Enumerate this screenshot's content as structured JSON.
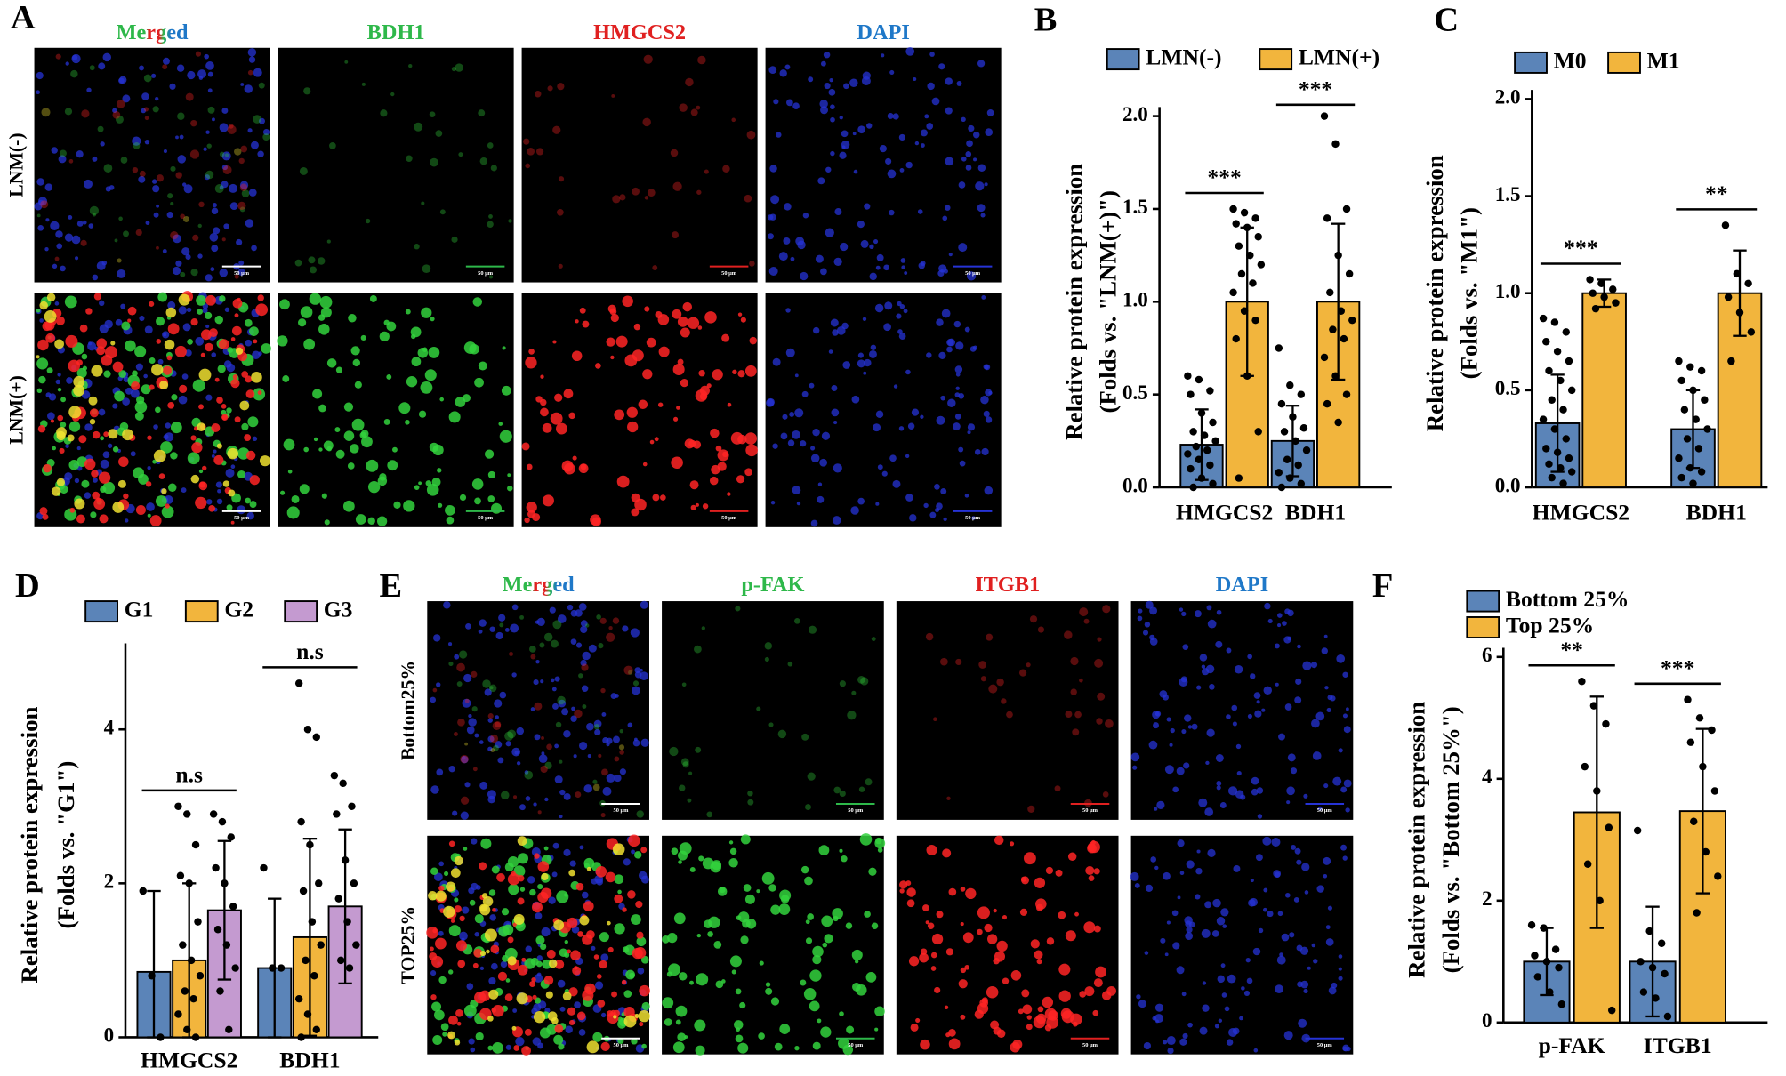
{
  "image_panels": [
    {
      "panel": "A",
      "columns": [
        "Merged",
        "BDH1",
        "HMGCS2",
        "DAPI"
      ],
      "rows": [
        "LNM(-)",
        "LNM(+)"
      ],
      "scale_bar": "50 μm"
    },
    {
      "panel": "E",
      "columns": [
        "Merged",
        "p-FAK",
        "ITGB1",
        "DAPI"
      ],
      "rows": [
        "Bottom25%",
        "TOP25%"
      ],
      "scale_bar": "50 μm"
    }
  ],
  "chart_data": [
    {
      "type": "bar",
      "panel": "B",
      "ylabel": [
        "Relative protein expression",
        "(Folds vs. \"LNM(+)\")"
      ],
      "categories": [
        "HMGCS2",
        "BDH1"
      ],
      "series": [
        {
          "name": "LMN(-)",
          "color": "#5b84b8",
          "values": [
            0.23,
            0.25
          ],
          "errors": [
            0.19,
            0.19
          ],
          "points": [
            [
              0.6,
              0.58,
              0.52,
              0.5,
              0.4,
              0.35,
              0.3,
              0.28,
              0.25,
              0.22,
              0.2,
              0.18,
              0.15,
              0.12,
              0.1,
              0.05,
              0.02,
              0
            ],
            [
              0.75,
              0.55,
              0.5,
              0.45,
              0.38,
              0.32,
              0.3,
              0.25,
              0.2,
              0.15,
              0.12,
              0.08,
              0.05,
              0.02,
              0
            ]
          ]
        },
        {
          "name": "LMN(+)",
          "color": "#f2b53d",
          "values": [
            1.0,
            1.0
          ],
          "errors": [
            0.4,
            0.42
          ],
          "points": [
            [
              1.5,
              1.48,
              1.45,
              1.42,
              1.4,
              1.35,
              1.3,
              1.25,
              1.2,
              1.15,
              1.1,
              1.05,
              0.95,
              0.9,
              0.8,
              0.6,
              0.3,
              0.05
            ],
            [
              2.0,
              1.85,
              1.5,
              1.45,
              1.25,
              1.15,
              1.05,
              0.95,
              0.9,
              0.85,
              0.8,
              0.7,
              0.6,
              0.5,
              0.45,
              0.35
            ]
          ]
        }
      ],
      "significance": [
        "***",
        "***"
      ],
      "ylim": [
        0,
        2
      ],
      "yticks": [
        {
          "value": 0,
          "label": "0.0"
        },
        0.5,
        {
          "value": 1,
          "label": "1.0"
        },
        1.5,
        {
          "value": 2,
          "label": "2.0"
        }
      ],
      "legend": "top",
      "legend_layout": "row"
    },
    {
      "type": "bar",
      "panel": "C",
      "ylabel": [
        "Relative protein expression",
        "(Folds vs. \"M1\")"
      ],
      "categories": [
        "HMGCS2",
        "BDH1"
      ],
      "series": [
        {
          "name": "M0",
          "color": "#5b84b8",
          "values": [
            0.33,
            0.3
          ],
          "errors": [
            0.25,
            0.2
          ],
          "points": [
            [
              0.87,
              0.85,
              0.8,
              0.75,
              0.7,
              0.65,
              0.6,
              0.55,
              0.5,
              0.45,
              0.4,
              0.35,
              0.3,
              0.25,
              0.2,
              0.18,
              0.15,
              0.12,
              0.1,
              0.08,
              0.05,
              0.02
            ],
            [
              0.65,
              0.62,
              0.6,
              0.55,
              0.5,
              0.45,
              0.4,
              0.35,
              0.3,
              0.25,
              0.2,
              0.15,
              0.1,
              0.08,
              0.05,
              0.02
            ]
          ]
        },
        {
          "name": "M1",
          "color": "#f2b53d",
          "values": [
            1.0,
            1.0
          ],
          "errors": [
            0.07,
            0.22
          ],
          "points": [
            [
              1.07,
              1.05,
              1.02,
              1.0,
              0.98,
              0.95,
              0.92
            ],
            [
              1.35,
              1.1,
              1.05,
              0.98,
              0.9,
              0.8,
              0.65
            ]
          ]
        }
      ],
      "significance": [
        "***",
        "**"
      ],
      "ylim": [
        0,
        2
      ],
      "yticks": [
        {
          "value": 0,
          "label": "0.0"
        },
        0.5,
        {
          "value": 1,
          "label": "1.0"
        },
        1.5,
        {
          "value": 2,
          "label": "2.0"
        }
      ],
      "legend": "top",
      "legend_layout": "row"
    },
    {
      "type": "bar",
      "panel": "D",
      "ylabel": [
        "Relative protein expression",
        "(Folds vs. \"G1\")"
      ],
      "categories": [
        "HMGCS2",
        "BDH1"
      ],
      "series": [
        {
          "name": "G1",
          "color": "#5b84b8",
          "values": [
            0.85,
            0.9
          ],
          "errors": [
            1.05,
            0.9
          ],
          "points": [
            [
              1.9,
              0.8,
              0
            ],
            [
              2.2,
              0.9,
              0.9
            ]
          ]
        },
        {
          "name": "G2",
          "color": "#f2b53d",
          "values": [
            1.0,
            1.3
          ],
          "errors": [
            1.0,
            1.28
          ],
          "points": [
            [
              3.0,
              2.9,
              2.5,
              2.1,
              2.0,
              1.5,
              1.2,
              1.0,
              0.8,
              0.6,
              0.5,
              0.3,
              0.1,
              0
            ],
            [
              4.6,
              4.0,
              3.9,
              2.8,
              2.5,
              2.0,
              1.9,
              1.5,
              1.2,
              1.0,
              0.8,
              0.5,
              0.3,
              0.1,
              0
            ]
          ]
        },
        {
          "name": "G3",
          "color": "#c49ad0",
          "values": [
            1.65,
            1.7
          ],
          "errors": [
            0.9,
            1.0
          ],
          "points": [
            [
              2.9,
              2.8,
              2.6,
              2.2,
              2.0,
              1.7,
              1.4,
              1.2,
              0.9,
              0.6,
              0.1
            ],
            [
              3.4,
              3.3,
              3.0,
              2.9,
              2.3,
              2.0,
              1.8,
              1.5,
              1.2,
              1.0,
              0.9
            ]
          ]
        }
      ],
      "significance": [
        "n.s",
        "n.s"
      ],
      "ylim": [
        0,
        5
      ],
      "yticks": [
        0,
        2,
        4
      ],
      "legend": "top",
      "legend_layout": "row"
    },
    {
      "type": "bar",
      "panel": "F",
      "ylabel": [
        "Relative protein expression",
        "(Folds vs. \"Bottom 25%\")"
      ],
      "categories": [
        "p-FAK",
        "ITGB1"
      ],
      "series": [
        {
          "name": "Bottom 25%",
          "color": "#5b84b8",
          "values": [
            1.0,
            1.0
          ],
          "errors": [
            0.55,
            0.9
          ],
          "points": [
            [
              1.6,
              1.55,
              1.2,
              1.1,
              1.0,
              0.9,
              0.75,
              0.5,
              0.3
            ],
            [
              3.15,
              1.5,
              1.3,
              1.0,
              0.9,
              0.8,
              0.5,
              0.4,
              0.1
            ]
          ]
        },
        {
          "name": "Top 25%",
          "color": "#f2b53d",
          "values": [
            3.45,
            3.47
          ],
          "errors": [
            1.9,
            1.35
          ],
          "points": [
            [
              5.6,
              5.2,
              4.9,
              4.2,
              3.8,
              3.2,
              2.6,
              2.0,
              0.2
            ],
            [
              5.3,
              5.0,
              4.8,
              4.6,
              4.2,
              3.8,
              3.3,
              2.8,
              2.4,
              1.8
            ]
          ]
        }
      ],
      "significance": [
        "**",
        "***"
      ],
      "ylim": [
        0,
        6
      ],
      "yticks": [
        0,
        2,
        4,
        6
      ],
      "legend": "top",
      "legend_layout": "column"
    }
  ]
}
